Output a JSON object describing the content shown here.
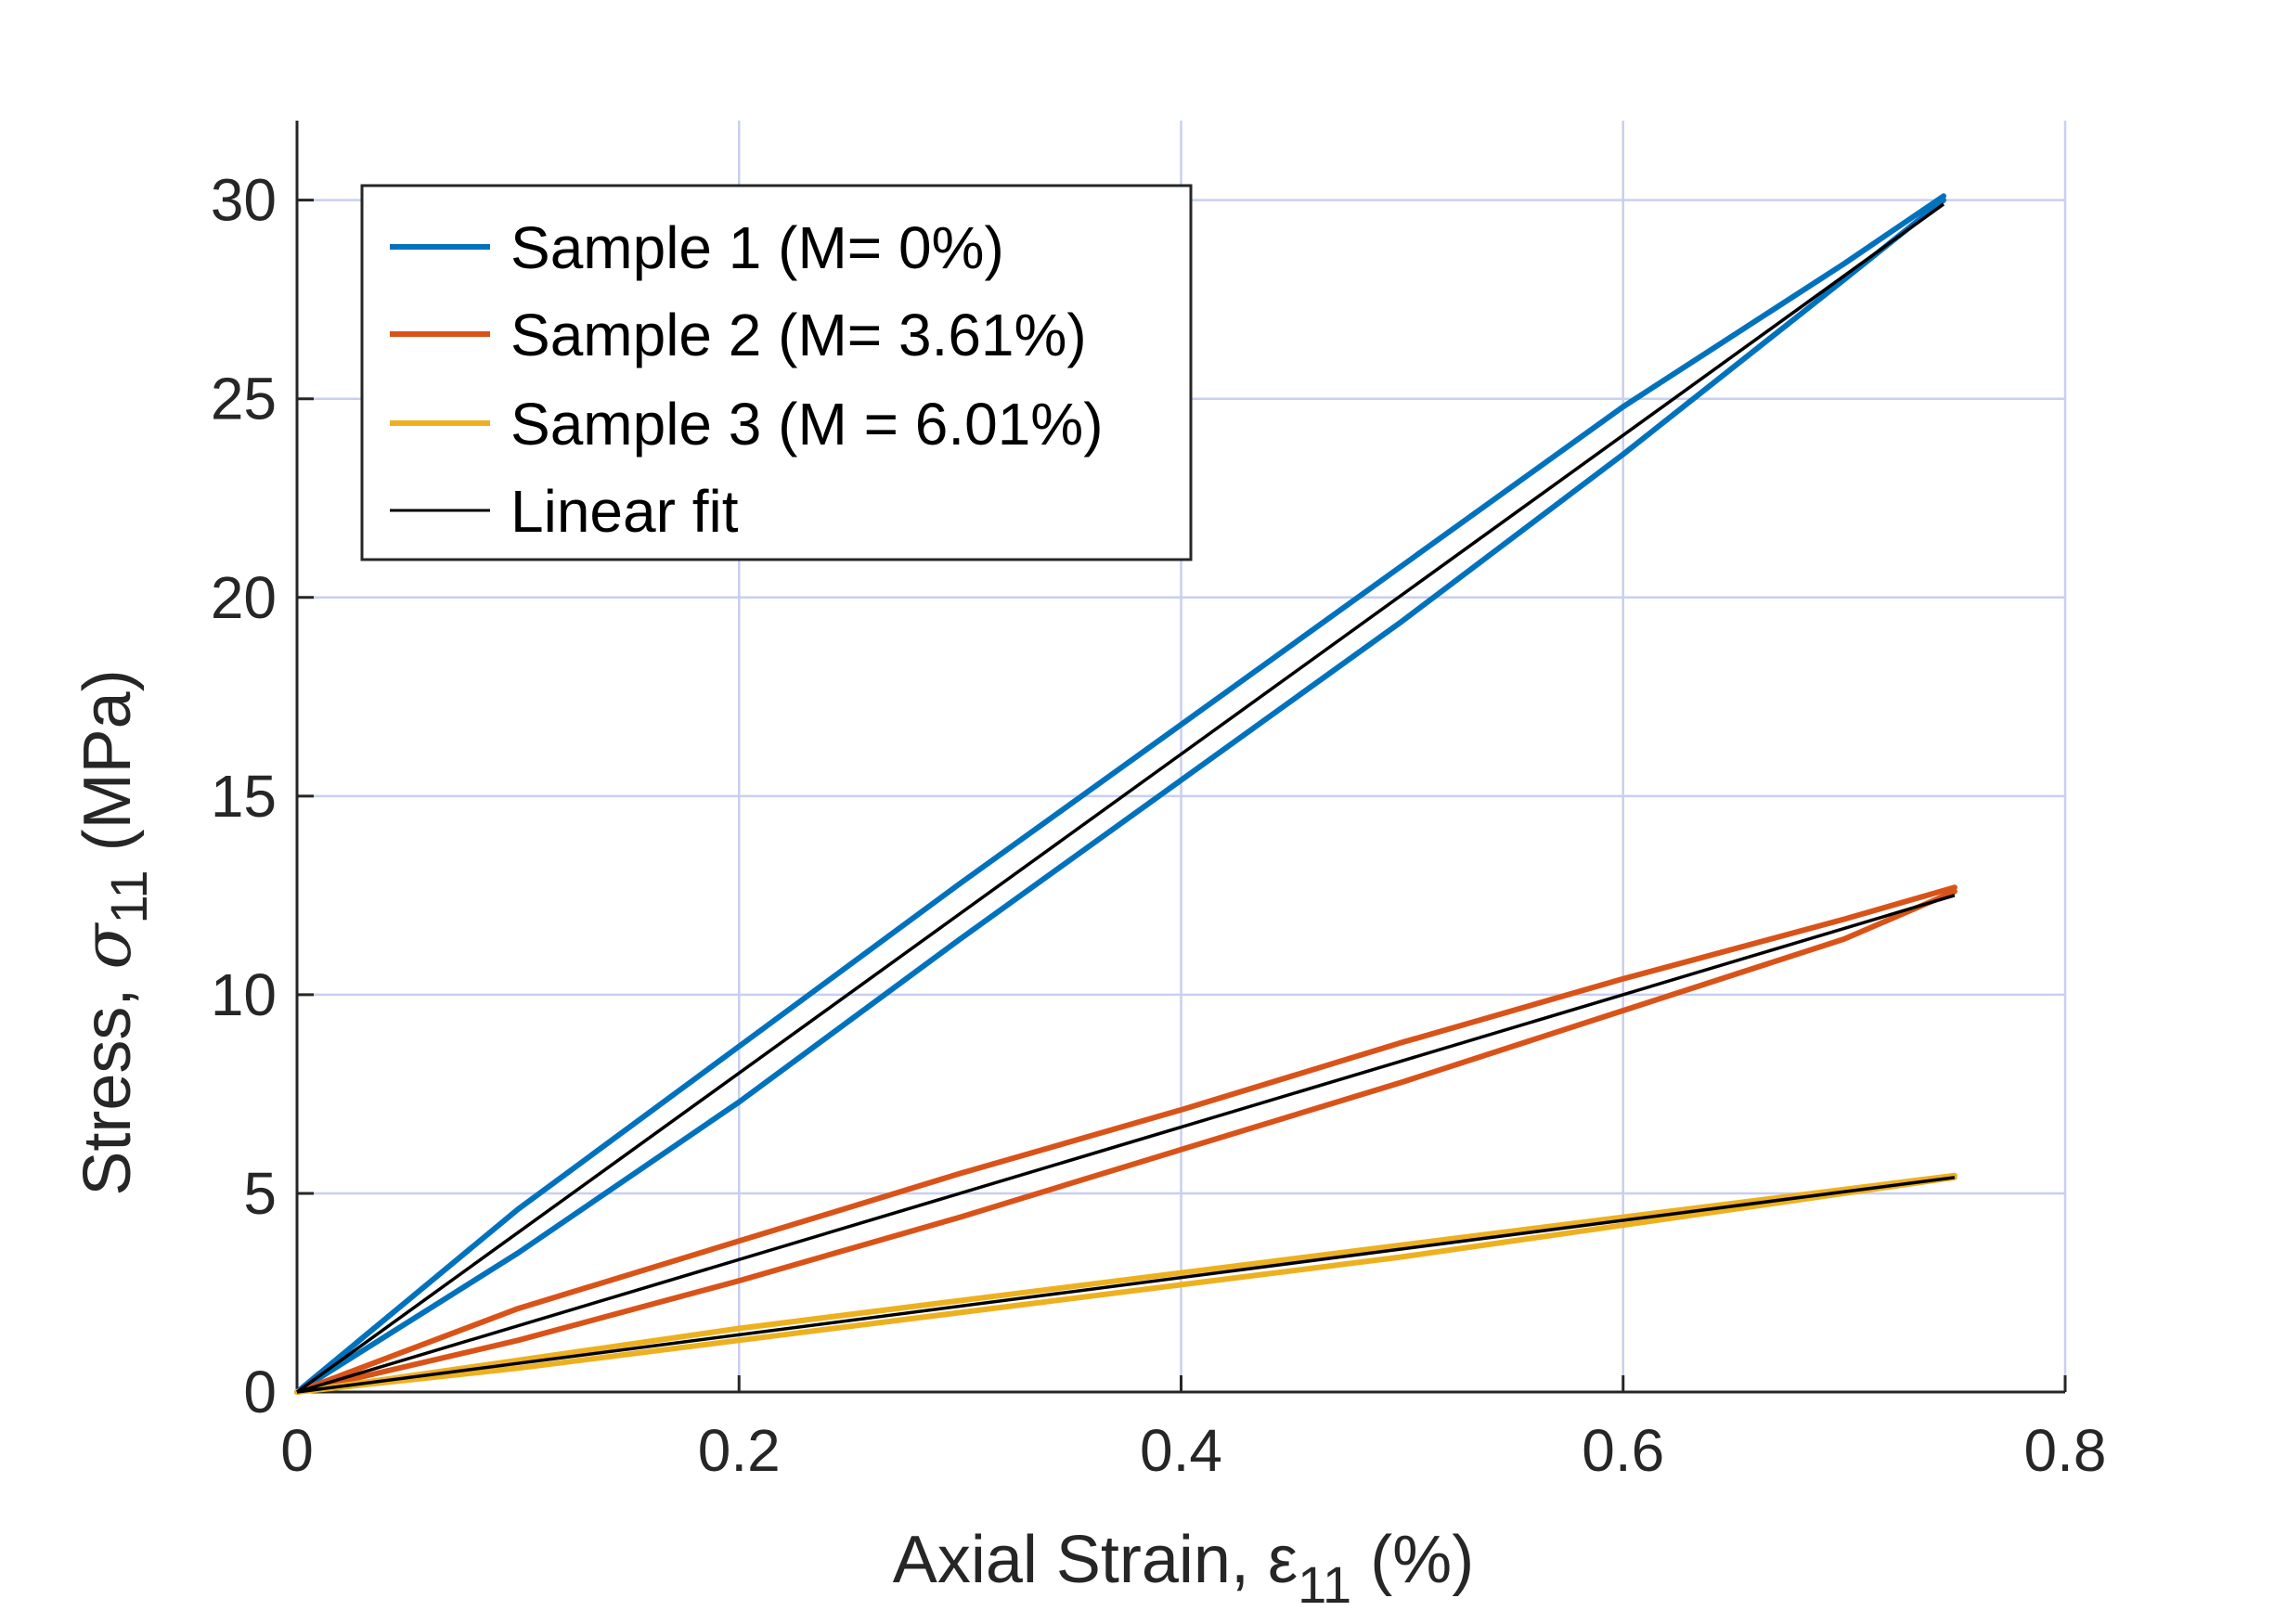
{
  "chart_data": {
    "type": "line",
    "xlabel": {
      "main": "Axial Strain, ε",
      "sub": "11",
      "unit": " (%)"
    },
    "ylabel": {
      "main": "Stress, ",
      "symbol": "σ",
      "sub": "11",
      "unit": " (MPa)"
    },
    "xlim": [
      0,
      0.8
    ],
    "ylim": [
      0,
      32
    ],
    "xticks": [
      0,
      0.2,
      0.4,
      0.6,
      0.8
    ],
    "xtick_labels": [
      "0",
      "0.2",
      "0.4",
      "0.6",
      "0.8"
    ],
    "yticks": [
      0,
      5,
      10,
      15,
      20,
      25,
      30
    ],
    "ytick_labels": [
      "0",
      "5",
      "10",
      "15",
      "20",
      "25",
      "30"
    ],
    "grid": true,
    "legend_position": "top-left",
    "series": [
      {
        "name": "Sample 1 (M= 0%)",
        "color": "#0072BD",
        "loading": {
          "x": [
            0,
            0.1,
            0.2,
            0.3,
            0.4,
            0.5,
            0.6,
            0.7,
            0.745
          ],
          "y": [
            0,
            4.6,
            8.7,
            12.8,
            16.8,
            20.8,
            24.8,
            28.4,
            30.1
          ]
        },
        "unloading": {
          "x": [
            0.745,
            0.7,
            0.6,
            0.5,
            0.4,
            0.3,
            0.2,
            0.1,
            0
          ],
          "y": [
            30.0,
            28.0,
            23.6,
            19.4,
            15.4,
            11.4,
            7.3,
            3.5,
            0
          ]
        }
      },
      {
        "name": "Sample 2 (M= 3.61%)",
        "color": "#D95319",
        "loading": {
          "x": [
            0,
            0.1,
            0.2,
            0.3,
            0.4,
            0.5,
            0.6,
            0.7,
            0.75
          ],
          "y": [
            0,
            2.1,
            3.8,
            5.5,
            7.1,
            8.8,
            10.4,
            11.9,
            12.7
          ]
        },
        "unloading": {
          "x": [
            0.75,
            0.7,
            0.6,
            0.5,
            0.4,
            0.3,
            0.2,
            0.1,
            0
          ],
          "y": [
            12.6,
            11.4,
            9.6,
            7.8,
            6.1,
            4.4,
            2.8,
            1.3,
            0
          ]
        }
      },
      {
        "name": "Sample 3 (M = 6.01%)",
        "color": "#EDB120",
        "loading": {
          "x": [
            0,
            0.1,
            0.2,
            0.3,
            0.4,
            0.5,
            0.6,
            0.7,
            0.75
          ],
          "y": [
            0,
            0.8,
            1.6,
            2.3,
            3.0,
            3.7,
            4.4,
            5.1,
            5.45
          ]
        },
        "unloading": {
          "x": [
            0.75,
            0.7,
            0.6,
            0.5,
            0.4,
            0.3,
            0.2,
            0.1,
            0
          ],
          "y": [
            5.4,
            5.0,
            4.2,
            3.4,
            2.7,
            2.0,
            1.3,
            0.6,
            0
          ]
        }
      },
      {
        "name": "Linear fit",
        "color": "#000000",
        "fits": [
          {
            "x": [
              0,
              0.745
            ],
            "y": [
              0,
              29.9
            ]
          },
          {
            "x": [
              0,
              0.75
            ],
            "y": [
              0,
              12.5
            ]
          },
          {
            "x": [
              0,
              0.75
            ],
            "y": [
              0,
              5.4
            ]
          }
        ]
      }
    ]
  }
}
